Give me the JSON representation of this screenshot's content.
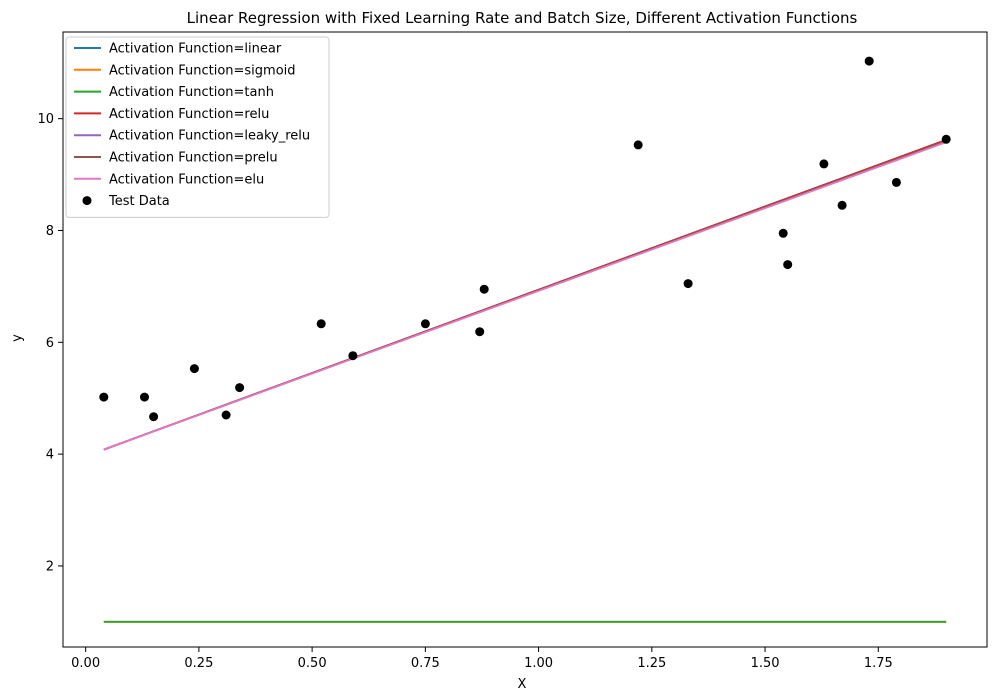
{
  "chart_data": {
    "type": "line",
    "title": "Linear Regression with Fixed Learning Rate and Batch Size, Different Activation Functions",
    "xlabel": "X",
    "ylabel": "y",
    "xlim": [
      -0.05,
      1.99
    ],
    "ylim": [
      0.55,
      11.55
    ],
    "xticks": [
      0.0,
      0.25,
      0.5,
      0.75,
      1.0,
      1.25,
      1.5,
      1.75
    ],
    "xtick_labels": [
      "0.00",
      "0.25",
      "0.50",
      "0.75",
      "1.00",
      "1.25",
      "1.50",
      "1.75"
    ],
    "yticks": [
      2,
      4,
      6,
      8,
      10
    ],
    "ytick_labels": [
      "2",
      "4",
      "6",
      "8",
      "10"
    ],
    "grid": false,
    "legend_position": "top-left",
    "series": [
      {
        "name": "Activation Function=linear",
        "color": "#1f77b4",
        "x": [
          0.04,
          1.9
        ],
        "y": [
          4.08,
          9.62
        ]
      },
      {
        "name": "Activation Function=sigmoid",
        "color": "#ff7f0e",
        "x": [
          0.04,
          1.9
        ],
        "y": [
          1.0,
          1.0
        ]
      },
      {
        "name": "Activation Function=tanh",
        "color": "#2ca02c",
        "x": [
          0.04,
          1.9
        ],
        "y": [
          1.0,
          1.0
        ]
      },
      {
        "name": "Activation Function=relu",
        "color": "#d62728",
        "x": [
          0.04,
          1.9
        ],
        "y": [
          4.08,
          9.62
        ]
      },
      {
        "name": "Activation Function=leaky_relu",
        "color": "#9467bd",
        "x": [
          0.04,
          1.9
        ],
        "y": [
          4.08,
          9.6
        ]
      },
      {
        "name": "Activation Function=prelu",
        "color": "#8c564b",
        "x": [
          0.04,
          1.9
        ],
        "y": [
          4.08,
          9.6
        ]
      },
      {
        "name": "Activation Function=elu",
        "color": "#e377c2",
        "x": [
          0.04,
          1.9
        ],
        "y": [
          4.08,
          9.58
        ]
      }
    ],
    "scatter": {
      "name": "Test Data",
      "color": "#000000",
      "points": [
        [
          0.04,
          5.02
        ],
        [
          0.13,
          5.02
        ],
        [
          0.15,
          4.67
        ],
        [
          0.24,
          5.53
        ],
        [
          0.31,
          4.7
        ],
        [
          0.34,
          5.19
        ],
        [
          0.52,
          6.33
        ],
        [
          0.59,
          5.76
        ],
        [
          0.75,
          6.33
        ],
        [
          0.87,
          6.19
        ],
        [
          0.88,
          6.95
        ],
        [
          1.22,
          9.53
        ],
        [
          1.33,
          7.05
        ],
        [
          1.54,
          7.95
        ],
        [
          1.55,
          7.39
        ],
        [
          1.63,
          9.19
        ],
        [
          1.67,
          8.45
        ],
        [
          1.73,
          11.03
        ],
        [
          1.79,
          8.86
        ],
        [
          1.9,
          9.63
        ]
      ]
    }
  }
}
